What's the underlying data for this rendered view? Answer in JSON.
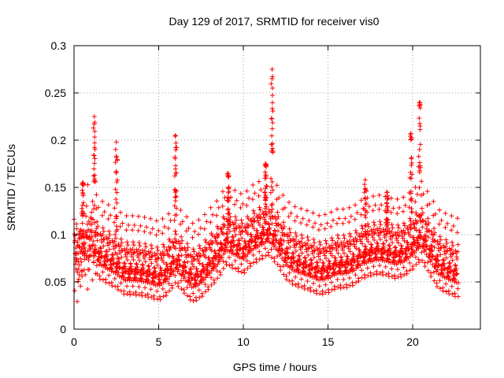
{
  "chart_data": {
    "type": "scatter",
    "title": "Day 129 of 2017, SRMTID for receiver vis0",
    "xlabel": "GPS time / hours",
    "ylabel": "SRMTID / TECUs",
    "xlim": [
      0,
      24
    ],
    "ylim": [
      0,
      0.3
    ],
    "xticks": [
      0,
      5,
      10,
      15,
      20
    ],
    "yticks": [
      0,
      0.05,
      0.1,
      0.15,
      0.2,
      0.25,
      0.3
    ],
    "xtick_labels": [
      "0",
      "5",
      "10",
      "15",
      "20"
    ],
    "ytick_labels": [
      "0",
      "0.05",
      "0.1",
      "0.15",
      "0.2",
      "0.25",
      "0.3"
    ],
    "grid": true,
    "marker": "+",
    "series_color": "#ff0000",
    "x_extent": [
      0,
      22.7
    ],
    "trend": [
      {
        "x": 0.0,
        "y": 0.072
      },
      {
        "x": 0.5,
        "y": 0.085
      },
      {
        "x": 1.0,
        "y": 0.09
      },
      {
        "x": 1.5,
        "y": 0.075
      },
      {
        "x": 2.0,
        "y": 0.07
      },
      {
        "x": 2.5,
        "y": 0.065
      },
      {
        "x": 3.0,
        "y": 0.058
      },
      {
        "x": 3.5,
        "y": 0.058
      },
      {
        "x": 4.0,
        "y": 0.057
      },
      {
        "x": 4.5,
        "y": 0.055
      },
      {
        "x": 5.0,
        "y": 0.052
      },
      {
        "x": 5.5,
        "y": 0.058
      },
      {
        "x": 6.0,
        "y": 0.07
      },
      {
        "x": 6.5,
        "y": 0.06
      },
      {
        "x": 7.0,
        "y": 0.05
      },
      {
        "x": 7.5,
        "y": 0.055
      },
      {
        "x": 8.0,
        "y": 0.065
      },
      {
        "x": 8.5,
        "y": 0.075
      },
      {
        "x": 9.0,
        "y": 0.09
      },
      {
        "x": 9.5,
        "y": 0.085
      },
      {
        "x": 10.0,
        "y": 0.08
      },
      {
        "x": 10.5,
        "y": 0.09
      },
      {
        "x": 11.0,
        "y": 0.095
      },
      {
        "x": 11.5,
        "y": 0.1
      },
      {
        "x": 12.0,
        "y": 0.09
      },
      {
        "x": 12.5,
        "y": 0.075
      },
      {
        "x": 13.0,
        "y": 0.068
      },
      {
        "x": 13.5,
        "y": 0.065
      },
      {
        "x": 14.0,
        "y": 0.062
      },
      {
        "x": 14.5,
        "y": 0.058
      },
      {
        "x": 15.0,
        "y": 0.06
      },
      {
        "x": 15.5,
        "y": 0.065
      },
      {
        "x": 16.0,
        "y": 0.065
      },
      {
        "x": 16.5,
        "y": 0.068
      },
      {
        "x": 17.0,
        "y": 0.075
      },
      {
        "x": 17.5,
        "y": 0.078
      },
      {
        "x": 18.0,
        "y": 0.08
      },
      {
        "x": 18.5,
        "y": 0.078
      },
      {
        "x": 19.0,
        "y": 0.075
      },
      {
        "x": 19.5,
        "y": 0.078
      },
      {
        "x": 20.0,
        "y": 0.085
      },
      {
        "x": 20.5,
        "y": 0.095
      },
      {
        "x": 21.0,
        "y": 0.08
      },
      {
        "x": 21.5,
        "y": 0.065
      },
      {
        "x": 22.0,
        "y": 0.06
      },
      {
        "x": 22.7,
        "y": 0.055
      }
    ],
    "spikes": [
      {
        "x": 0.5,
        "peak": 0.155
      },
      {
        "x": 1.2,
        "peak": 0.225
      },
      {
        "x": 2.5,
        "peak": 0.198
      },
      {
        "x": 6.0,
        "peak": 0.205
      },
      {
        "x": 9.1,
        "peak": 0.165
      },
      {
        "x": 11.3,
        "peak": 0.175
      },
      {
        "x": 11.7,
        "peak": 0.275
      },
      {
        "x": 17.2,
        "peak": 0.158
      },
      {
        "x": 18.5,
        "peak": 0.145
      },
      {
        "x": 19.9,
        "peak": 0.207
      },
      {
        "x": 20.4,
        "peak": 0.24
      }
    ]
  }
}
